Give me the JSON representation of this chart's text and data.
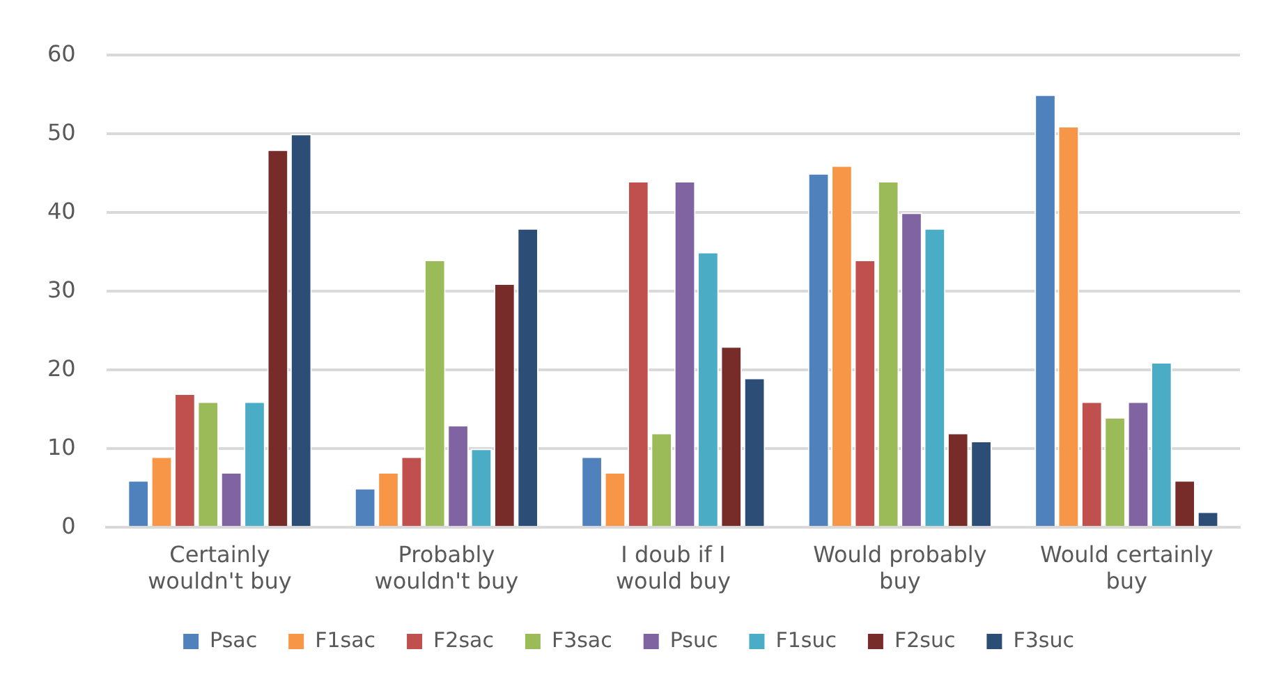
{
  "chart_data": {
    "type": "bar",
    "categories": [
      "Certainly wouldn't buy",
      "Probably wouldn't buy",
      "I doub if I would buy",
      "Would probably buy",
      "Would certainly buy"
    ],
    "series": [
      {
        "name": "Psac",
        "color": "#4f81bd",
        "values": [
          6,
          5,
          9,
          45,
          55
        ]
      },
      {
        "name": "F1sac",
        "color": "#f79646",
        "values": [
          9,
          7,
          7,
          46,
          51
        ]
      },
      {
        "name": "F2sac",
        "color": "#c0504d",
        "values": [
          17,
          9,
          44,
          34,
          16
        ]
      },
      {
        "name": "F3sac",
        "color": "#9bbb59",
        "values": [
          16,
          34,
          12,
          44,
          14
        ]
      },
      {
        "name": "Psuc",
        "color": "#8064a2",
        "values": [
          7,
          13,
          44,
          40,
          16
        ]
      },
      {
        "name": "F1suc",
        "color": "#4bacc6",
        "values": [
          16,
          10,
          35,
          38,
          21
        ]
      },
      {
        "name": "F2suc",
        "color": "#772c2a",
        "values": [
          48,
          31,
          23,
          12,
          6
        ]
      },
      {
        "name": "F3suc",
        "color": "#2c4d75",
        "values": [
          50,
          38,
          19,
          11,
          2
        ]
      }
    ],
    "ylim": [
      0,
      60
    ],
    "yticks": [
      0,
      10,
      20,
      30,
      40,
      50,
      60
    ],
    "grid": "y",
    "legend": "bottom"
  }
}
